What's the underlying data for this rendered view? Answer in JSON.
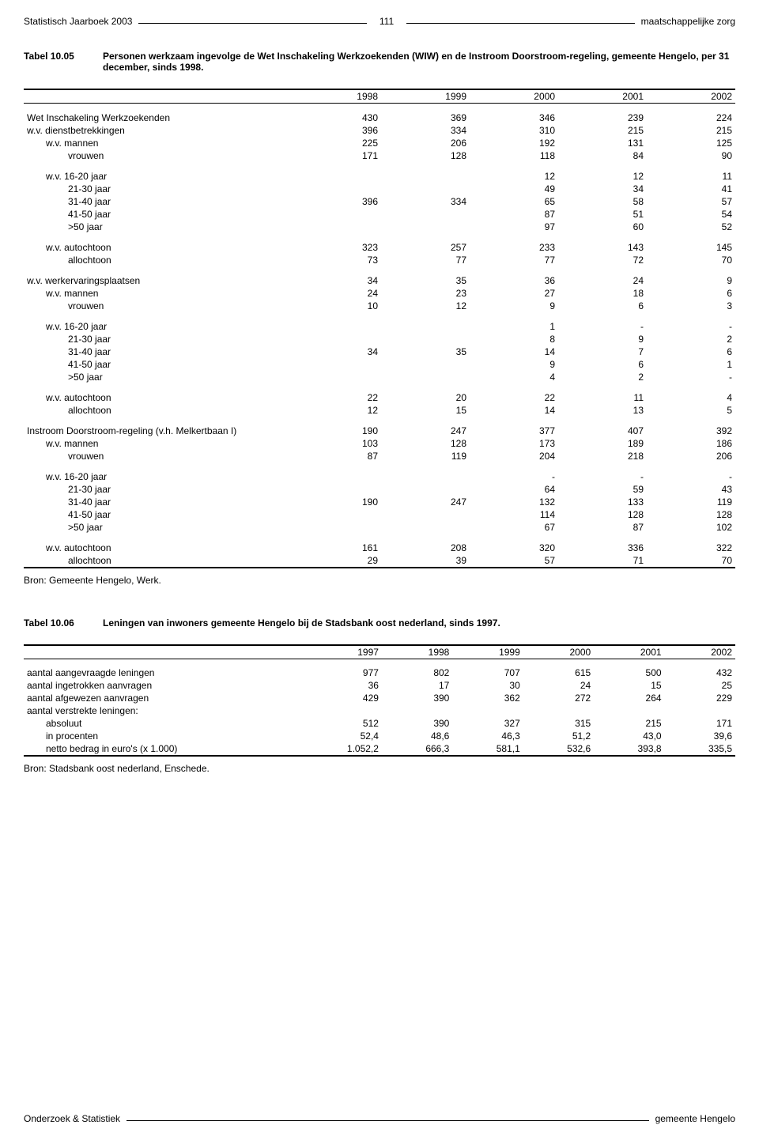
{
  "header": {
    "left": "Statistisch Jaarboek 2003",
    "pageNum": "111",
    "right": "maatschappelijke zorg"
  },
  "table1": {
    "num": "Tabel 10.05",
    "title": "Personen werkzaam ingevolge de Wet Inschakeling Werkzoekenden (WIW) en de Instroom Doorstroom-regeling, gemeente Hengelo, per 31 december, sinds 1998.",
    "years": [
      "1998",
      "1999",
      "2000",
      "2001",
      "2002"
    ],
    "rows": [
      {
        "label": "Wet Inschakeling Werkzoekenden",
        "bold": true,
        "indent": 0,
        "vals": [
          "430",
          "369",
          "346",
          "239",
          "224"
        ]
      },
      {
        "label": "w.v.  dienstbetrekkingen",
        "indent": 0,
        "vals": [
          "396",
          "334",
          "310",
          "215",
          "215"
        ]
      },
      {
        "label": "w.v.  mannen",
        "indent": 1,
        "vals": [
          "225",
          "206",
          "192",
          "131",
          "125"
        ]
      },
      {
        "label": "vrouwen",
        "indent": 2,
        "vals": [
          "171",
          "128",
          "118",
          "84",
          "90"
        ]
      },
      {
        "spacer": true
      },
      {
        "label": "w.v.  16-20 jaar",
        "indent": 1,
        "vals": [
          "",
          "",
          "12",
          "12",
          "11"
        ]
      },
      {
        "label": "21-30 jaar",
        "indent": 2,
        "vals": [
          "",
          "",
          "49",
          "34",
          "41"
        ]
      },
      {
        "label": "31-40 jaar",
        "indent": 2,
        "vals": [
          "396",
          "334",
          "65",
          "58",
          "57"
        ]
      },
      {
        "label": "41-50 jaar",
        "indent": 2,
        "vals": [
          "",
          "",
          "87",
          "51",
          "54"
        ]
      },
      {
        "label": ">50 jaar",
        "indent": 2,
        "vals": [
          "",
          "",
          "97",
          "60",
          "52"
        ]
      },
      {
        "spacer": true
      },
      {
        "label": "w.v.  autochtoon",
        "indent": 1,
        "vals": [
          "323",
          "257",
          "233",
          "143",
          "145"
        ]
      },
      {
        "label": "allochtoon",
        "indent": 2,
        "vals": [
          "73",
          "77",
          "77",
          "72",
          "70"
        ]
      },
      {
        "spacer": true
      },
      {
        "label": "w.v.  werkervaringsplaatsen",
        "indent": 0,
        "vals": [
          "34",
          "35",
          "36",
          "24",
          "9"
        ]
      },
      {
        "label": "w.v.  mannen",
        "indent": 1,
        "vals": [
          "24",
          "23",
          "27",
          "18",
          "6"
        ]
      },
      {
        "label": "vrouwen",
        "indent": 2,
        "vals": [
          "10",
          "12",
          "9",
          "6",
          "3"
        ]
      },
      {
        "spacer": true
      },
      {
        "label": "w.v.  16-20 jaar",
        "indent": 1,
        "vals": [
          "",
          "",
          "1",
          "-",
          "-"
        ]
      },
      {
        "label": "21-30 jaar",
        "indent": 2,
        "vals": [
          "",
          "",
          "8",
          "9",
          "2"
        ]
      },
      {
        "label": "31-40 jaar",
        "indent": 2,
        "vals": [
          "34",
          "35",
          "14",
          "7",
          "6"
        ]
      },
      {
        "label": "41-50 jaar",
        "indent": 2,
        "vals": [
          "",
          "",
          "9",
          "6",
          "1"
        ]
      },
      {
        "label": ">50 jaar",
        "indent": 2,
        "vals": [
          "",
          "",
          "4",
          "2",
          "-"
        ]
      },
      {
        "spacer": true
      },
      {
        "label": "w.v.  autochtoon",
        "indent": 1,
        "vals": [
          "22",
          "20",
          "22",
          "11",
          "4"
        ]
      },
      {
        "label": "allochtoon",
        "indent": 2,
        "vals": [
          "12",
          "15",
          "14",
          "13",
          "5"
        ]
      },
      {
        "spacer": true
      },
      {
        "label": "Instroom Doorstroom-regeling (v.h. Melkertbaan I)",
        "bold": true,
        "indent": 0,
        "vals": [
          "190",
          "247",
          "377",
          "407",
          "392"
        ]
      },
      {
        "label": "w.v.  mannen",
        "indent": 1,
        "vals": [
          "103",
          "128",
          "173",
          "189",
          "186"
        ]
      },
      {
        "label": "vrouwen",
        "indent": 2,
        "vals": [
          "87",
          "119",
          "204",
          "218",
          "206"
        ]
      },
      {
        "spacer": true
      },
      {
        "label": "w.v.  16-20 jaar",
        "indent": 1,
        "vals": [
          "",
          "",
          "-",
          "-",
          "-"
        ]
      },
      {
        "label": "21-30 jaar",
        "indent": 2,
        "vals": [
          "",
          "",
          "64",
          "59",
          "43"
        ]
      },
      {
        "label": "31-40 jaar",
        "indent": 2,
        "vals": [
          "190",
          "247",
          "132",
          "133",
          "119"
        ]
      },
      {
        "label": "41-50 jaar",
        "indent": 2,
        "vals": [
          "",
          "",
          "114",
          "128",
          "128"
        ]
      },
      {
        "label": ">50 jaar",
        "indent": 2,
        "vals": [
          "",
          "",
          "67",
          "87",
          "102"
        ]
      },
      {
        "spacer": true
      },
      {
        "label": "w.v.  autochtoon",
        "indent": 1,
        "vals": [
          "161",
          "208",
          "320",
          "336",
          "322"
        ]
      },
      {
        "label": "allochtoon",
        "indent": 2,
        "vals": [
          "29",
          "39",
          "57",
          "71",
          "70"
        ]
      }
    ],
    "source": "Bron: Gemeente Hengelo, Werk."
  },
  "table2": {
    "num": "Tabel 10.06",
    "title": "Leningen van inwoners gemeente Hengelo bij de Stadsbank oost nederland, sinds 1997.",
    "years": [
      "1997",
      "1998",
      "1999",
      "2000",
      "2001",
      "2002"
    ],
    "rows": [
      {
        "label": "aantal aangevraagde leningen",
        "indent": 0,
        "vals": [
          "977",
          "802",
          "707",
          "615",
          "500",
          "432"
        ]
      },
      {
        "label": "aantal ingetrokken aanvragen",
        "indent": 0,
        "vals": [
          "36",
          "17",
          "30",
          "24",
          "15",
          "25"
        ]
      },
      {
        "label": "aantal afgewezen aanvragen",
        "indent": 0,
        "vals": [
          "429",
          "390",
          "362",
          "272",
          "264",
          "229"
        ]
      },
      {
        "label": "aantal verstrekte leningen:",
        "indent": 0,
        "vals": [
          "",
          "",
          "",
          "",
          "",
          ""
        ]
      },
      {
        "label": "absoluut",
        "indent": 1,
        "vals": [
          "512",
          "390",
          "327",
          "315",
          "215",
          "171"
        ]
      },
      {
        "label": "in procenten",
        "indent": 1,
        "vals": [
          "52,4",
          "48,6",
          "46,3",
          "51,2",
          "43,0",
          "39,6"
        ]
      },
      {
        "label": "netto bedrag in euro's (x 1.000)",
        "indent": 1,
        "vals": [
          "1.052,2",
          "666,3",
          "581,1",
          "532,6",
          "393,8",
          "335,5"
        ]
      }
    ],
    "source": "Bron: Stadsbank oost nederland, Enschede."
  },
  "footer": {
    "left": "Onderzoek & Statistiek",
    "right": "gemeente Hengelo"
  }
}
